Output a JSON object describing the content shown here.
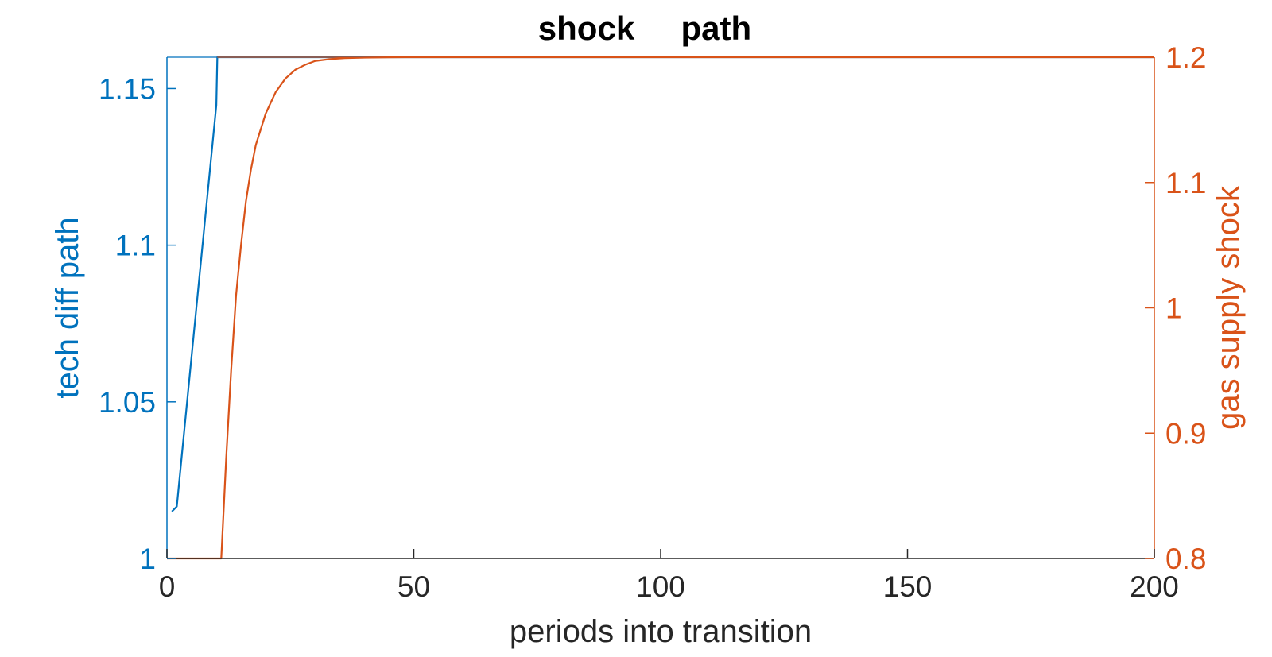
{
  "colors": {
    "left_axis": "#0072BD",
    "right_axis": "#D95319",
    "bottom_axis": "#262626",
    "title": "#000000",
    "background": "#ffffff"
  },
  "chart_data": {
    "type": "line",
    "title": "shock     path",
    "xlabel": "periods into transition",
    "ylabel_left": "tech diff path",
    "ylabel_right": "gas supply shock",
    "xlim": [
      0,
      200
    ],
    "ylim_left": [
      1,
      1.16
    ],
    "ylim_right": [
      0.8,
      1.2
    ],
    "x_ticks": [
      0,
      50,
      100,
      150,
      200
    ],
    "x_tick_labels": [
      "0",
      "50",
      "100",
      "150",
      "200"
    ],
    "y_left_ticks": [
      1,
      1.05,
      1.1,
      1.15
    ],
    "y_left_tick_labels": [
      "1",
      "1.05",
      "1.1",
      "1.15"
    ],
    "y_right_ticks": [
      0.8,
      0.9,
      1,
      1.1,
      1.2
    ],
    "y_right_tick_labels": [
      "0.8",
      "0.9",
      "1",
      "1.1",
      "1.2"
    ],
    "grid": false,
    "legend": "none",
    "series": [
      {
        "axis": "left",
        "color": "#0072BD",
        "x": [
          1,
          2,
          3,
          4,
          5,
          6,
          7,
          8,
          9,
          10,
          10.2,
          200
        ],
        "y": [
          1.015,
          1.0166,
          1.0327,
          1.0487,
          1.0647,
          1.0807,
          1.0967,
          1.1127,
          1.1287,
          1.1447,
          1.16,
          1.16
        ]
      },
      {
        "axis": "right",
        "color": "#D95319",
        "x": [
          0,
          10,
          11,
          12,
          13,
          14,
          15,
          16,
          17,
          18,
          20,
          22,
          24,
          26,
          28,
          30,
          33,
          36,
          40,
          45,
          50,
          60,
          200
        ],
        "y": [
          0.8,
          0.8,
          0.8,
          0.88,
          0.95,
          1.01,
          1.05,
          1.085,
          1.11,
          1.13,
          1.155,
          1.172,
          1.183,
          1.19,
          1.194,
          1.197,
          1.1985,
          1.1993,
          1.1997,
          1.1999,
          1.2,
          1.2,
          1.2
        ]
      }
    ]
  }
}
